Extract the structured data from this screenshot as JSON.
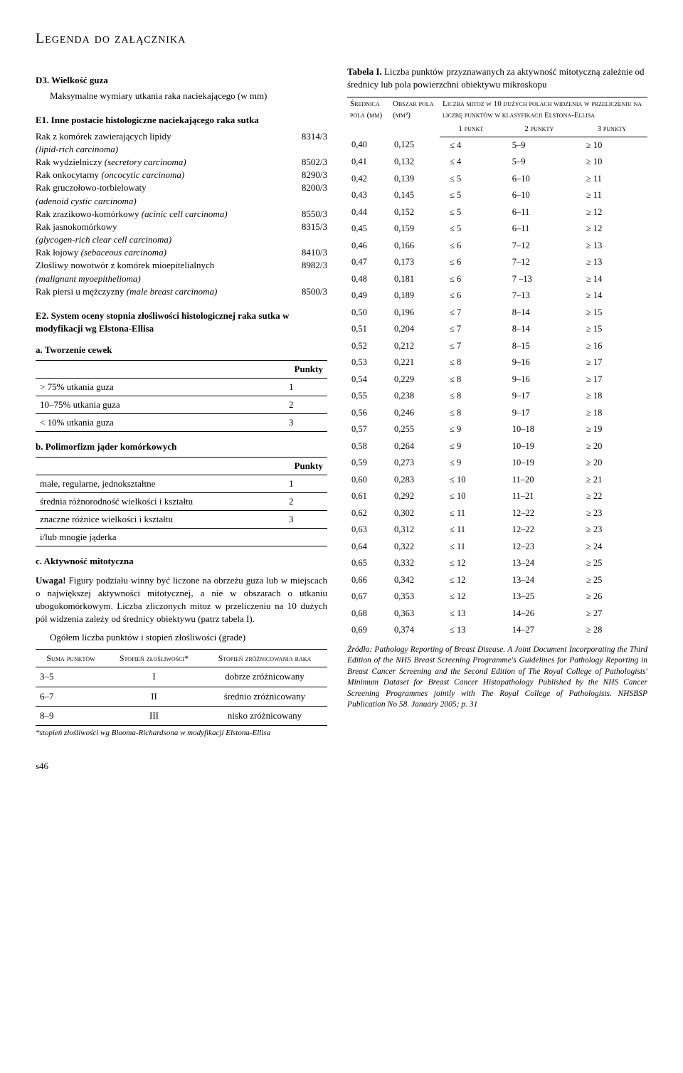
{
  "title": "Legenda do załącznika",
  "left": {
    "d3": {
      "label": "D3. Wielkość guza",
      "text": "Maksymalne wymiary utkania raka naciekającego (w mm)"
    },
    "e1": {
      "label": "E1. Inne postacie histologiczne naciekającego raka sutka",
      "items": [
        {
          "name": "Rak z komórek zawierających lipidy",
          "sub": "(lipid-rich carcinoma)",
          "code": "8314/3"
        },
        {
          "name": "Rak wydzielniczy (secretory carcinoma)",
          "sub": "",
          "code": "8502/3",
          "subItalic": "(secretory carcinoma)"
        },
        {
          "name": "Rak onkocytarny (oncocytic carcinoma)",
          "sub": "",
          "code": "8290/3",
          "subItalic": "(oncocytic carcinoma)"
        },
        {
          "name": "Rak gruczołowo-torbielowaty",
          "sub": "(adenoid cystic carcinoma)",
          "code": "8200/3"
        },
        {
          "name": "Rak zrazikowo-komórkowy (acinic cell carcinoma)",
          "sub": "",
          "code": "8550/3",
          "subItalic": "(acinic cell carcinoma)"
        },
        {
          "name": "Rak jasnokomórkowy",
          "sub": "(glycogen-rich clear cell carcinoma)",
          "code": "8315/3"
        },
        {
          "name": "Rak łojowy (sebaceous carcinoma)",
          "sub": "",
          "code": "8410/3",
          "subItalic": "(sebaceous carcinoma)"
        },
        {
          "name": "Złośliwy nowotwór z komórek mioepitelialnych",
          "sub": "(malignant myoepithelioma)",
          "code": "8982/3"
        },
        {
          "name": "Rak piersi u mężczyzny (male breast carcinoma)",
          "sub": "",
          "code": "8500/3",
          "subItalic": "(male breast carcinoma)"
        }
      ]
    },
    "e2": {
      "label": "E2. System oceny stopnia złośliwości histologicznej raka sutka w modyfikacji wg Elstona-Ellisa",
      "a": {
        "label": "a. Tworzenie cewek",
        "points_header": "Punkty",
        "rows": [
          {
            "desc": "> 75% utkania guza",
            "pts": "1"
          },
          {
            "desc": "10–75% utkania guza",
            "pts": "2"
          },
          {
            "desc": "< 10% utkania guza",
            "pts": "3"
          }
        ]
      },
      "b": {
        "label": "b. Polimorfizm jąder komórkowych",
        "points_header": "Punkty",
        "rows": [
          {
            "desc": "małe, regularne, jednokształtne",
            "pts": "1"
          },
          {
            "desc": "średnia różnorodność wielkości i kształtu",
            "pts": "2"
          },
          {
            "desc": "znaczne różnice wielkości i kształtu",
            "pts": "3"
          },
          {
            "desc": "i/lub mnogie jąderka",
            "pts": ""
          }
        ]
      },
      "c": {
        "label": "c. Aktywność mitotyczna",
        "uwaga_label": "Uwaga!",
        "uwaga_text": " Figury podziału winny być liczone na obrzeżu guza lub w miejscach o największej aktywności mitotycznej, a nie w obszarach o utkaniu ubogokomórkowym. Liczba zliczonych mitoz w przeliczeniu na 10 dużych pól widzenia zależy od średnicy obiektywu (patrz tabela I)."
      },
      "ogolem": "Ogółem liczba punktów i stopień złośliwości (grade)"
    },
    "grade": {
      "headers": [
        "Suma punktów",
        "Stopień złośliwości*",
        "Stopień zróżnicowania raka"
      ],
      "rows": [
        {
          "a": "3–5",
          "b": "I",
          "c": "dobrze zróżnicowany"
        },
        {
          "a": "6–7",
          "b": "II",
          "c": "średnio zróżnicowany"
        },
        {
          "a": "8–9",
          "b": "III",
          "c": "nisko zróżnicowany"
        }
      ],
      "footnote": "*stopień złośliwości wg Blooma-Richardsona w modyfikacji Elstona-Ellisa"
    }
  },
  "right": {
    "caption_bold": "Tabela I.",
    "caption_rest": " Liczba punktów przyznawanych za aktywność mitotyczną zależnie od średnicy lub pola powierzchni obiektywu mikroskopu",
    "head": {
      "col1": "Średnica pola (mm)",
      "col2": "Obszar pola (mm²)",
      "col3": "Liczba mitoz w 10 dużych polach widzenia w przeliczeniu na liczbę punktów w klasyfikacji Elstona-Ellisa",
      "sub1": "1 punkt",
      "sub2": "2 punkty",
      "sub3": "3 punkty"
    },
    "rows": [
      {
        "d": "0,40",
        "a": "0,125",
        "p1": "≤ 4",
        "p2": "5–9",
        "p3": "≥ 10"
      },
      {
        "d": "0,41",
        "a": "0,132",
        "p1": "≤ 4",
        "p2": "5–9",
        "p3": "≥ 10"
      },
      {
        "d": "0,42",
        "a": "0,139",
        "p1": "≤ 5",
        "p2": "6–10",
        "p3": "≥ 11"
      },
      {
        "d": "0,43",
        "a": "0,145",
        "p1": "≤ 5",
        "p2": "6–10",
        "p3": "≥ 11"
      },
      {
        "d": "0,44",
        "a": "0,152",
        "p1": "≤ 5",
        "p2": "6–11",
        "p3": "≥ 12"
      },
      {
        "d": "0,45",
        "a": "0,159",
        "p1": "≤ 5",
        "p2": "6–11",
        "p3": "≥ 12"
      },
      {
        "d": "0,46",
        "a": "0,166",
        "p1": "≤ 6",
        "p2": "7–12",
        "p3": "≥ 13"
      },
      {
        "d": "0,47",
        "a": "0,173",
        "p1": "≤ 6",
        "p2": "7–12",
        "p3": "≥ 13"
      },
      {
        "d": "0,48",
        "a": "0,181",
        "p1": "≤ 6",
        "p2": "7 –13",
        "p3": "≥ 14"
      },
      {
        "d": "0,49",
        "a": "0,189",
        "p1": "≤ 6",
        "p2": "7–13",
        "p3": "≥ 14"
      },
      {
        "d": "0,50",
        "a": "0,196",
        "p1": "≤ 7",
        "p2": "8–14",
        "p3": "≥ 15"
      },
      {
        "d": "0,51",
        "a": "0,204",
        "p1": "≤ 7",
        "p2": "8–14",
        "p3": "≥ 15"
      },
      {
        "d": "0,52",
        "a": "0,212",
        "p1": "≤ 7",
        "p2": "8–15",
        "p3": "≥ 16"
      },
      {
        "d": "0,53",
        "a": "0,221",
        "p1": "≤ 8",
        "p2": "9–16",
        "p3": "≥ 17"
      },
      {
        "d": "0,54",
        "a": "0,229",
        "p1": "≤ 8",
        "p2": "9–16",
        "p3": "≥ 17"
      },
      {
        "d": "0,55",
        "a": "0,238",
        "p1": "≤ 8",
        "p2": "9–17",
        "p3": "≥ 18"
      },
      {
        "d": "0,56",
        "a": "0,246",
        "p1": "≤ 8",
        "p2": "9–17",
        "p3": "≥ 18"
      },
      {
        "d": "0,57",
        "a": "0,255",
        "p1": "≤ 9",
        "p2": "10–18",
        "p3": "≥ 19"
      },
      {
        "d": "0,58",
        "a": "0,264",
        "p1": "≤ 9",
        "p2": "10–19",
        "p3": "≥ 20"
      },
      {
        "d": "0,59",
        "a": "0,273",
        "p1": "≤ 9",
        "p2": "10–19",
        "p3": "≥ 20"
      },
      {
        "d": "0,60",
        "a": "0,283",
        "p1": "≤ 10",
        "p2": "11–20",
        "p3": "≥ 21"
      },
      {
        "d": "0,61",
        "a": "0,292",
        "p1": "≤ 10",
        "p2": "11–21",
        "p3": "≥ 22"
      },
      {
        "d": "0,62",
        "a": "0,302",
        "p1": "≤ 11",
        "p2": "12–22",
        "p3": "≥ 23"
      },
      {
        "d": "0,63",
        "a": "0,312",
        "p1": "≤ 11",
        "p2": "12–22",
        "p3": "≥ 23"
      },
      {
        "d": "0,64",
        "a": "0,322",
        "p1": "≤ 11",
        "p2": "12–23",
        "p3": "≥ 24"
      },
      {
        "d": "0,65",
        "a": "0,332",
        "p1": "≤ 12",
        "p2": "13–24",
        "p3": "≥ 25"
      },
      {
        "d": "0,66",
        "a": "0,342",
        "p1": "≤ 12",
        "p2": "13–24",
        "p3": "≥ 25"
      },
      {
        "d": "0,67",
        "a": "0,353",
        "p1": "≤ 12",
        "p2": "13–25",
        "p3": "≥ 26"
      },
      {
        "d": "0,68",
        "a": "0,363",
        "p1": "≤ 13",
        "p2": "14–26",
        "p3": "≥ 27"
      },
      {
        "d": "0,69",
        "a": "0,374",
        "p1": "≤ 13",
        "p2": "14–27",
        "p3": "≥ 28"
      }
    ],
    "source": "Źródło: Pathology Reporting of Breast Disease. A Joint Document Incorporating the Third Edition of the NHS Breast Screening Programme's Guidelines for Pathology Reporting in Breast Cancer Screening and the Second Edition of The Royal College of Pathologists' Minimum Dataset for Breast Cancer Histopathology Published by the NHS Cancer Screening Programmes jointly with The Royal College of Pathologists. NHSBSP Publication No 58. January 2005; p. 31"
  },
  "page_number": "s46"
}
